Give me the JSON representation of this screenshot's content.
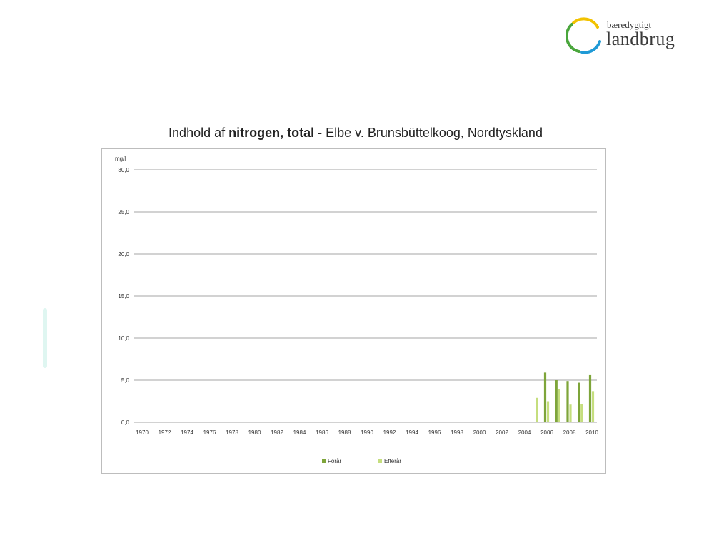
{
  "logo": {
    "line1": "bæredygtigt",
    "line2": "landbrug"
  },
  "title": {
    "prefix": "Indhold af ",
    "bold": "nitrogen, total",
    "suffix": " - Elbe v. Brunsbüttelkoog, Nordtyskland"
  },
  "colors": {
    "forar": "#7ea53a",
    "efterar": "#c5de7e",
    "grid": "#a6a6a6",
    "text": "#333333",
    "logo_yellow": "#f2c200",
    "logo_green": "#4aa63c",
    "logo_blue": "#1f9ad6"
  },
  "chart_data": {
    "type": "bar",
    "ylabel": "mg/l",
    "ylim": [
      0,
      30
    ],
    "yticks": [
      "30,0",
      "25,0",
      "20,0",
      "15,0",
      "10,0",
      "5,0",
      "0,0"
    ],
    "ytick_values": [
      30,
      25,
      20,
      15,
      10,
      5,
      0
    ],
    "xticks": [
      "1970",
      "1972",
      "1974",
      "1976",
      "1978",
      "1980",
      "1982",
      "1984",
      "1986",
      "1988",
      "1990",
      "1992",
      "1994",
      "1996",
      "1998",
      "2000",
      "2002",
      "2004",
      "2006",
      "2008",
      "2010"
    ],
    "categories": [
      1970,
      1971,
      1972,
      1973,
      1974,
      1975,
      1976,
      1977,
      1978,
      1979,
      1980,
      1981,
      1982,
      1983,
      1984,
      1985,
      1986,
      1987,
      1988,
      1989,
      1990,
      1991,
      1992,
      1993,
      1994,
      1995,
      1996,
      1997,
      1998,
      1999,
      2000,
      2001,
      2002,
      2003,
      2004,
      2005,
      2006,
      2007,
      2008,
      2009,
      2010
    ],
    "series": [
      {
        "name": "Forår",
        "values": [
          null,
          null,
          null,
          null,
          null,
          null,
          null,
          null,
          null,
          null,
          null,
          null,
          null,
          null,
          null,
          null,
          null,
          null,
          null,
          null,
          null,
          null,
          null,
          null,
          null,
          null,
          null,
          null,
          null,
          null,
          null,
          null,
          null,
          null,
          null,
          null,
          5.9,
          5.0,
          4.9,
          4.7,
          5.6
        ]
      },
      {
        "name": "Efterår",
        "values": [
          null,
          null,
          null,
          null,
          null,
          null,
          null,
          null,
          null,
          null,
          null,
          null,
          null,
          null,
          null,
          null,
          null,
          null,
          null,
          null,
          null,
          null,
          null,
          null,
          null,
          null,
          null,
          null,
          null,
          null,
          null,
          null,
          null,
          null,
          null,
          2.9,
          2.5,
          3.9,
          2.1,
          2.2,
          3.7
        ]
      }
    ],
    "grid": true,
    "legend": "bottom"
  }
}
